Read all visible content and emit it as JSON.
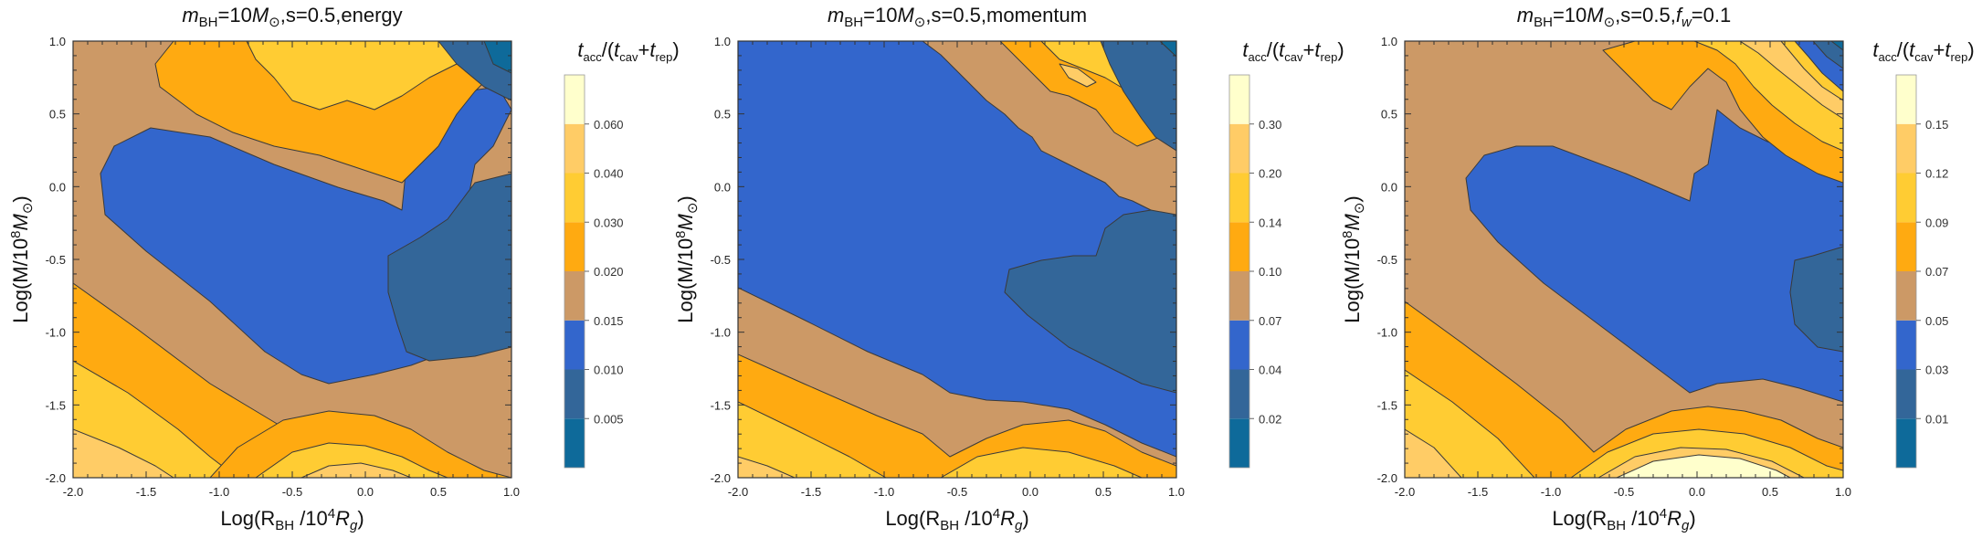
{
  "chart_data": [
    {
      "type": "contour",
      "title": "m_BH=10M_⊙,s=0.5,energy",
      "title_parts": {
        "m": "m",
        "sub": "BH",
        "mid": "=10",
        "M": "M",
        "sun": "⊙",
        "rest": ",s=0.5,energy"
      },
      "xlabel": "Log(R_BH /10^4 R_g)",
      "ylabel": "Log(M/10^8 M_⊙)",
      "xlim": [
        -2.0,
        1.0
      ],
      "ylim": [
        -2.0,
        1.0
      ],
      "xticks": [
        "-2.0",
        "-1.5",
        "-1.0",
        "-0.5",
        "0.0",
        "0.5",
        "1.0"
      ],
      "yticks": [
        "-2.0",
        "-1.5",
        "-1.0",
        "-0.5",
        "0.0",
        "0.5",
        "1.0"
      ],
      "colorbar_title": "t_acc/(t_cav+t_rep)",
      "colorbar_levels": [
        "0.005",
        "0.010",
        "0.015",
        "0.020",
        "0.030",
        "0.040",
        "0.060"
      ],
      "colorbar_colors": [
        "#0e6a9a",
        "#336699",
        "#3366cc",
        "#cc9966",
        "#ffaa11",
        "#ffcc33",
        "#ffcc66",
        "#ffffcc"
      ]
    },
    {
      "type": "contour",
      "title": "m_BH=10M_⊙,s=0.5,momentum",
      "title_parts": {
        "m": "m",
        "sub": "BH",
        "mid": "=10",
        "M": "M",
        "sun": "⊙",
        "rest": ",s=0.5,momentum"
      },
      "xlabel": "Log(R_BH /10^4 R_g)",
      "ylabel": "Log(M/10^8 M_⊙)",
      "xlim": [
        -2.0,
        1.0
      ],
      "ylim": [
        -2.0,
        1.0
      ],
      "xticks": [
        "-2.0",
        "-1.5",
        "-1.0",
        "-0.5",
        "0.0",
        "0.5",
        "1.0"
      ],
      "yticks": [
        "-2.0",
        "-1.5",
        "-1.0",
        "-0.5",
        "0.0",
        "0.5",
        "1.0"
      ],
      "colorbar_title": "t_acc/(t_cav+t_rep)",
      "colorbar_levels": [
        "0.02",
        "0.04",
        "0.07",
        "0.10",
        "0.14",
        "0.20",
        "0.30"
      ],
      "colorbar_colors": [
        "#0e6a9a",
        "#336699",
        "#3366cc",
        "#cc9966",
        "#ffaa11",
        "#ffcc33",
        "#ffcc66",
        "#ffffcc"
      ]
    },
    {
      "type": "contour",
      "title": "m_BH=10M_⊙,s=0.5,f_w=0.1",
      "title_parts": {
        "m": "m",
        "sub": "BH",
        "mid": "=10",
        "M": "M",
        "sun": "⊙",
        "rest1": ",s=0.5,",
        "f": "f",
        "fsub": "w",
        "rest2": "=0.1"
      },
      "xlabel": "Log(R_BH /10^4 R_g)",
      "ylabel": "Log(M/10^8 M_⊙)",
      "xlim": [
        -2.0,
        1.0
      ],
      "ylim": [
        -2.0,
        1.0
      ],
      "xticks": [
        "-2.0",
        "-1.5",
        "-1.0",
        "-0.5",
        "0.0",
        "0.5",
        "1.0"
      ],
      "yticks": [
        "-2.0",
        "-1.5",
        "-1.0",
        "-0.5",
        "0.0",
        "0.5",
        "1.0"
      ],
      "colorbar_title": "t_acc/(t_cav+t_rep)",
      "colorbar_levels": [
        "0.01",
        "0.03",
        "0.05",
        "0.07",
        "0.09",
        "0.12",
        "0.15"
      ],
      "colorbar_colors": [
        "#0e6a9a",
        "#336699",
        "#3366cc",
        "#cc9966",
        "#ffaa11",
        "#ffcc33",
        "#ffcc66",
        "#ffffcc"
      ]
    }
  ],
  "labels": {
    "x_prefix": "Log(R",
    "x_sub": "BH",
    "x_mid": " /10",
    "x_sup": "4",
    "x_R": "R",
    "x_g": "g",
    "x_end": ")",
    "y_prefix": "Log(M/10",
    "y_sup": "8",
    "y_M": "M",
    "y_sun": "⊙",
    "y_end": ")",
    "cb_t": "t",
    "cb_acc": "acc",
    "cb_mid": "/(",
    "cb_cav": "cav",
    "cb_plus": "+",
    "cb_rep": "rep",
    "cb_end": ")"
  }
}
